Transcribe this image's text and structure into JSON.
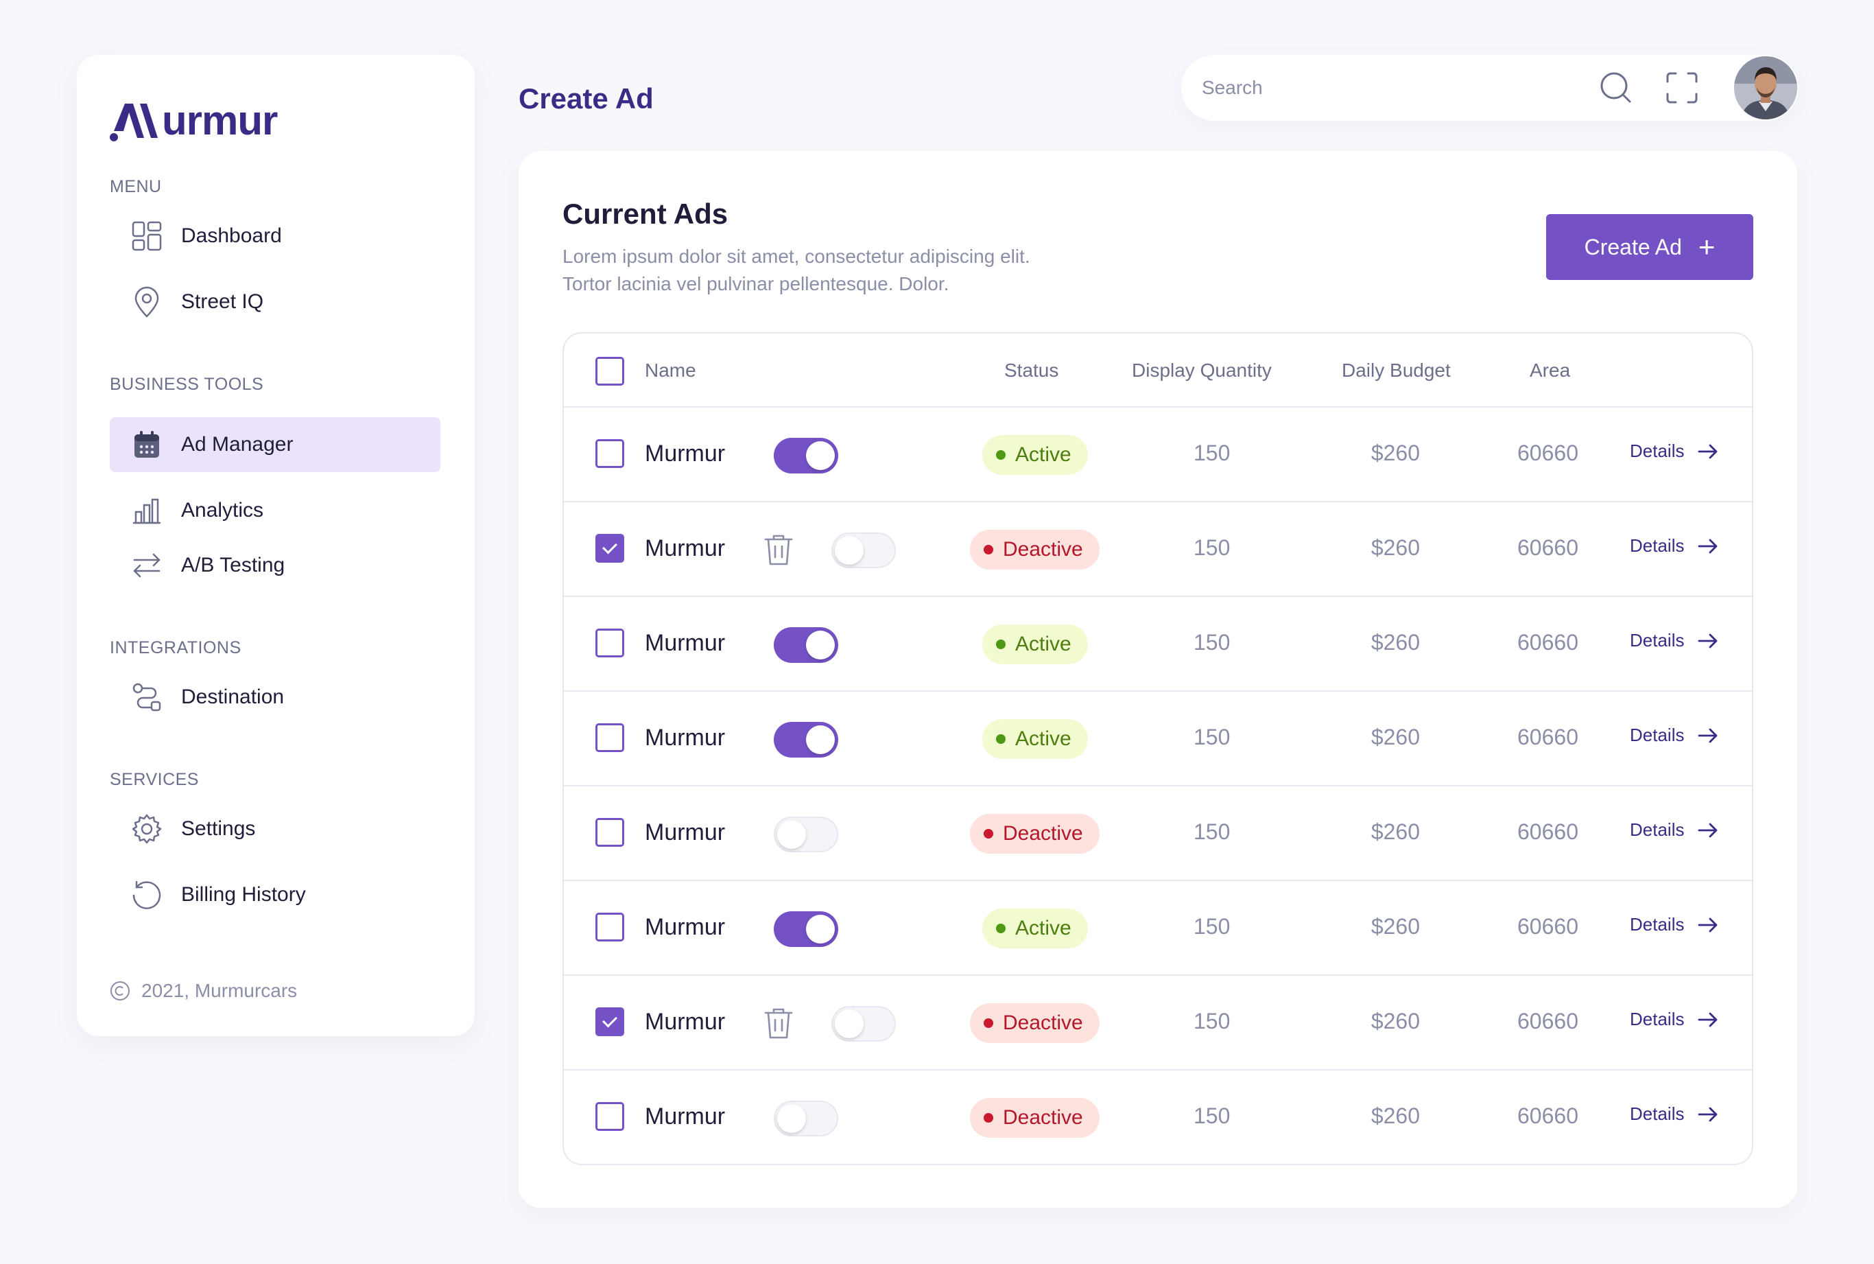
{
  "app": {
    "brand": "Murmur",
    "copyright": "2021, Murmurcars",
    "accent_color": "#7551c6",
    "brand_color": "#3a2b86"
  },
  "sidebar": {
    "sections": [
      {
        "label": "MENU",
        "items": [
          {
            "label": "Dashboard",
            "icon": "dashboard-icon"
          },
          {
            "label": "Street IQ",
            "icon": "location-pin-icon"
          }
        ]
      },
      {
        "label": "BUSINESS TOOLS",
        "items": [
          {
            "label": "Ad Manager",
            "icon": "calendar-icon",
            "active": true
          },
          {
            "label": "Analytics",
            "icon": "bar-chart-icon"
          },
          {
            "label": "A/B Testing",
            "icon": "swap-arrows-icon"
          }
        ]
      },
      {
        "label": "INTEGRATIONS",
        "items": [
          {
            "label": "Destination",
            "icon": "route-icon"
          }
        ]
      },
      {
        "label": "SERVICES",
        "items": [
          {
            "label": "Settings",
            "icon": "gear-icon"
          },
          {
            "label": "Billing History",
            "icon": "history-icon"
          }
        ]
      }
    ]
  },
  "header": {
    "title": "Create Ad",
    "search_placeholder": "Search"
  },
  "main": {
    "title": "Current Ads",
    "description": "Lorem ipsum dolor sit amet, consectetur adipiscing elit. Tortor lacinia vel pulvinar pellentesque. Dolor.",
    "create_button": "Create Ad",
    "create_button_icon": "plus-icon",
    "table": {
      "columns": [
        "Name",
        "Status",
        "Display Quantity",
        "Daily Budget",
        "Area"
      ],
      "details_label": "Details",
      "rows": [
        {
          "name": "Murmur",
          "checked": false,
          "enabled": true,
          "status": "Active",
          "quantity": "150",
          "budget": "$260",
          "area": "60660"
        },
        {
          "name": "Murmur",
          "checked": true,
          "enabled": false,
          "status": "Deactive",
          "quantity": "150",
          "budget": "$260",
          "area": "60660"
        },
        {
          "name": "Murmur",
          "checked": false,
          "enabled": true,
          "status": "Active",
          "quantity": "150",
          "budget": "$260",
          "area": "60660"
        },
        {
          "name": "Murmur",
          "checked": false,
          "enabled": true,
          "status": "Active",
          "quantity": "150",
          "budget": "$260",
          "area": "60660"
        },
        {
          "name": "Murmur",
          "checked": false,
          "enabled": false,
          "status": "Deactive",
          "quantity": "150",
          "budget": "$260",
          "area": "60660"
        },
        {
          "name": "Murmur",
          "checked": false,
          "enabled": true,
          "status": "Active",
          "quantity": "150",
          "budget": "$260",
          "area": "60660"
        },
        {
          "name": "Murmur",
          "checked": true,
          "enabled": false,
          "status": "Deactive",
          "quantity": "150",
          "budget": "$260",
          "area": "60660"
        },
        {
          "name": "Murmur",
          "checked": false,
          "enabled": false,
          "status": "Deactive",
          "quantity": "150",
          "budget": "$260",
          "area": "60660"
        }
      ]
    }
  }
}
